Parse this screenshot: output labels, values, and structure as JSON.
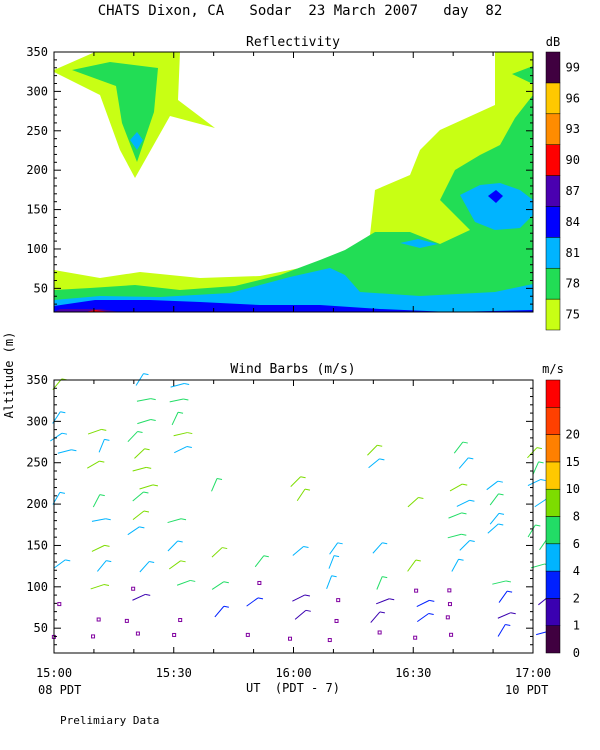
{
  "page": {
    "title": "CHATS Dixon, CA   Sodar  23 March 2007   day  82",
    "shared_ylabel": "Altitude (m)",
    "xlabel": "UT  (PDT - 7)",
    "start_local": "08 PDT",
    "end_local": "10 PDT",
    "footer": "Prelimiary Data"
  },
  "chart_data": [
    {
      "type": "heatmap",
      "title": "Reflectivity",
      "colorbar_unit": "dB",
      "x_unit": "UT",
      "xlim": [
        "15:00",
        "17:00"
      ],
      "ylim": [
        20,
        350
      ],
      "xticks": [
        "15:00",
        "15:30",
        "16:00",
        "16:30",
        "17:00"
      ],
      "yticks": [
        50,
        100,
        150,
        200,
        250,
        300,
        350
      ],
      "levels": [
        75,
        78,
        81,
        84,
        87,
        90,
        93,
        96,
        99
      ],
      "level_colors": [
        "#c8ff14",
        "#22dd55",
        "#00b4ff",
        "#0000ff",
        "#4a00b0",
        "#ff0000",
        "#ff8c00",
        "#ffc800",
        "#400040"
      ],
      "grid": false
    },
    {
      "type": "scatter",
      "title": "Wind Barbs (m/s)",
      "colorbar_unit": "m/s",
      "x_unit": "UT",
      "xlim": [
        "15:00",
        "17:00"
      ],
      "ylim": [
        20,
        350
      ],
      "xticks": [
        "15:00",
        "15:30",
        "16:00",
        "16:30",
        "17:00"
      ],
      "yticks": [
        50,
        100,
        150,
        200,
        250,
        300,
        350
      ],
      "levels": [
        0,
        1,
        2,
        4,
        6,
        8,
        10,
        15,
        20
      ],
      "level_colors": [
        "#400040",
        "#3a00b0",
        "#0020ff",
        "#00b4ff",
        "#22dd66",
        "#7ddd00",
        "#ffc800",
        "#ff8000",
        "#ff4000",
        "#ff0000"
      ],
      "grid": false
    }
  ]
}
